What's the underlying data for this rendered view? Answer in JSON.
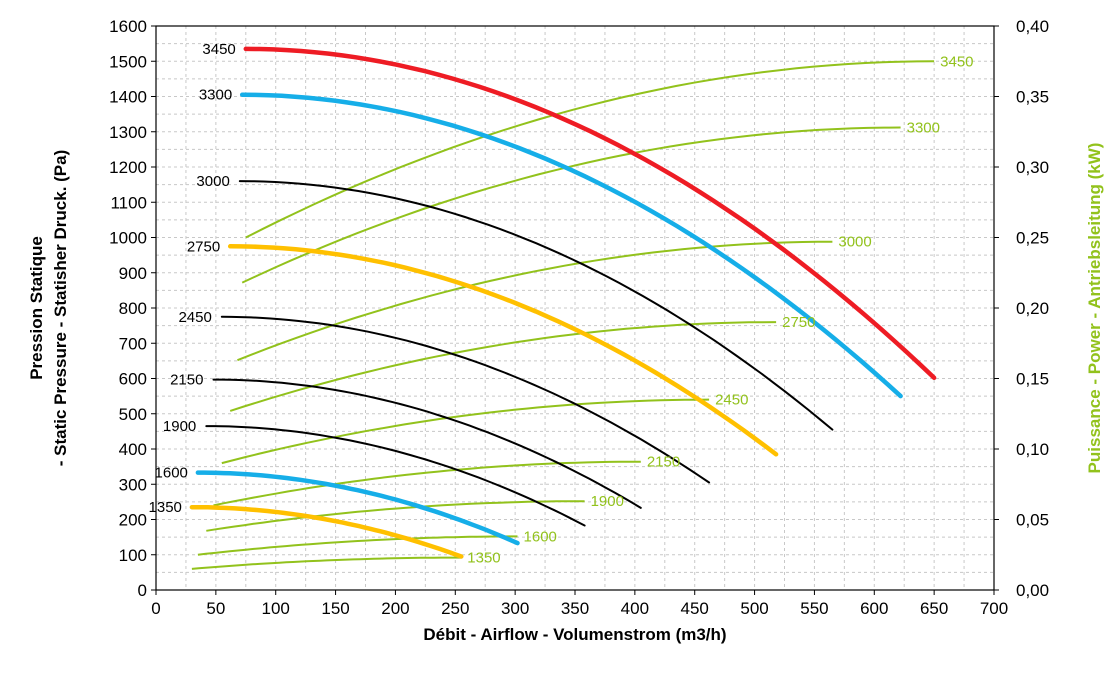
{
  "chart_data": {
    "type": "line",
    "title": "",
    "xlabel": "Débit - Airflow - Volumenstrom (m3/h)",
    "ylabel": [
      "Pression Statique",
      "- Static Pressure - Statisher Druck. (Pa)"
    ],
    "y2label": "Puissance - Power - Antriebsleitung (kW)",
    "xlim": [
      0,
      700
    ],
    "ylim": [
      0,
      1600
    ],
    "y2lim": [
      0,
      0.4
    ],
    "xticks": [
      "0",
      "50",
      "100",
      "150",
      "200",
      "250",
      "300",
      "350",
      "400",
      "450",
      "500",
      "550",
      "600",
      "650",
      "700"
    ],
    "yticks": [
      "0",
      "100",
      "200",
      "300",
      "400",
      "500",
      "600",
      "700",
      "800",
      "900",
      "1000",
      "1100",
      "1200",
      "1300",
      "1400",
      "1500",
      "1600"
    ],
    "y2ticks": [
      "0,00",
      "0,05",
      "0,10",
      "0,15",
      "0,20",
      "0,25",
      "0,30",
      "0,35",
      "0,40"
    ],
    "grid": true,
    "colors": {
      "red": "#ee1c24",
      "blue": "#16aee8",
      "yellow": "#ffc000",
      "black": "#000000",
      "power": "#92c21c",
      "grid": "#c8c8c8",
      "y2title": "#92c21c"
    },
    "pressure_series": [
      {
        "name": "3450",
        "color": "red",
        "width": 4.5,
        "start": [
          75,
          1535
        ],
        "end": [
          650,
          602
        ]
      },
      {
        "name": "3300",
        "color": "blue",
        "width": 4.5,
        "start": [
          72,
          1405
        ],
        "end": [
          622,
          550
        ]
      },
      {
        "name": "3000",
        "color": "black",
        "width": 2,
        "start": [
          70,
          1160
        ],
        "end": [
          565,
          455
        ]
      },
      {
        "name": "2750",
        "color": "yellow",
        "width": 4.5,
        "start": [
          62,
          975
        ],
        "end": [
          518,
          385
        ]
      },
      {
        "name": "2450",
        "color": "black",
        "width": 2,
        "start": [
          55,
          775
        ],
        "end": [
          462,
          305
        ]
      },
      {
        "name": "2150",
        "color": "black",
        "width": 2,
        "start": [
          48,
          597
        ],
        "end": [
          405,
          233
        ]
      },
      {
        "name": "1900",
        "color": "black",
        "width": 2,
        "start": [
          42,
          465
        ],
        "end": [
          358,
          183
        ]
      },
      {
        "name": "1600",
        "color": "blue",
        "width": 4.5,
        "start": [
          35,
          333
        ],
        "end": [
          302,
          133
        ]
      },
      {
        "name": "1350",
        "color": "yellow",
        "width": 4.5,
        "start": [
          30,
          235
        ],
        "end": [
          255,
          95
        ]
      }
    ],
    "power_series": [
      {
        "name": "3450",
        "start": [
          75,
          0.25
        ],
        "end": [
          650,
          0.375
        ]
      },
      {
        "name": "3300",
        "start": [
          72,
          0.218
        ],
        "end": [
          622,
          0.328
        ]
      },
      {
        "name": "3000",
        "start": [
          68,
          0.163
        ],
        "end": [
          565,
          0.247
        ]
      },
      {
        "name": "2750",
        "start": [
          62,
          0.127
        ],
        "end": [
          518,
          0.19
        ]
      },
      {
        "name": "2450",
        "start": [
          55,
          0.09
        ],
        "end": [
          462,
          0.135
        ]
      },
      {
        "name": "2150",
        "start": [
          48,
          0.06
        ],
        "end": [
          405,
          0.091
        ]
      },
      {
        "name": "1900",
        "start": [
          42,
          0.042
        ],
        "end": [
          358,
          0.063
        ]
      },
      {
        "name": "1600",
        "start": [
          35,
          0.025
        ],
        "end": [
          302,
          0.038
        ]
      },
      {
        "name": "1350",
        "start": [
          30,
          0.015
        ],
        "end": [
          255,
          0.023
        ]
      }
    ]
  }
}
